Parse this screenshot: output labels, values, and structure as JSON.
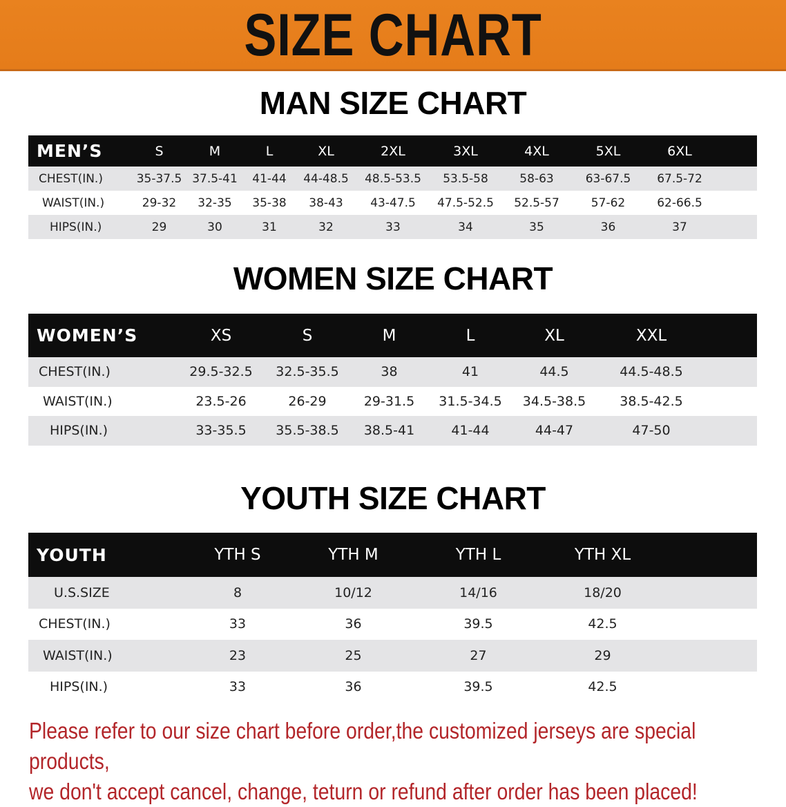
{
  "banner_title": "SIZE CHART",
  "colors": {
    "banner": "#E8801E",
    "header_row": "#0D0D0D",
    "stripe": "#E4E4E6",
    "note": "#B3262A"
  },
  "men": {
    "title": "MAN SIZE CHART",
    "header": [
      "MEN’S",
      "S",
      "M",
      "L",
      "XL",
      "2XL",
      "3XL",
      "4XL",
      "5XL",
      "6XL"
    ],
    "rows": [
      [
        "CHEST(IN.)",
        "35-37.5",
        "37.5-41",
        "41-44",
        "44-48.5",
        "48.5-53.5",
        "53.5-58",
        "58-63",
        "63-67.5",
        "67.5-72"
      ],
      [
        "WAIST(IN.)",
        "29-32",
        "32-35",
        "35-38",
        "38-43",
        "43-47.5",
        "47.5-52.5",
        "52.5-57",
        "57-62",
        "62-66.5"
      ],
      [
        "HIPS(IN.)",
        "29",
        "30",
        "31",
        "32",
        "33",
        "34",
        "35",
        "36",
        "37"
      ]
    ]
  },
  "women": {
    "title": "WOMEN SIZE CHART",
    "header": [
      "WOMEN’S",
      "XS",
      "S",
      "M",
      "L",
      "XL",
      "XXL"
    ],
    "rows": [
      [
        "CHEST(IN.)",
        "29.5-32.5",
        "32.5-35.5",
        "38",
        "41",
        "44.5",
        "44.5-48.5"
      ],
      [
        "WAIST(IN.)",
        "23.5-26",
        "26-29",
        "29-31.5",
        "31.5-34.5",
        "34.5-38.5",
        "38.5-42.5"
      ],
      [
        "HIPS(IN.)",
        "33-35.5",
        "35.5-38.5",
        "38.5-41",
        "41-44",
        "44-47",
        "47-50"
      ]
    ]
  },
  "youth": {
    "title": "YOUTH SIZE CHART",
    "header": [
      "YOUTH",
      "YTH S",
      "YTH M",
      "YTH L",
      "YTH XL"
    ],
    "rows": [
      [
        "U.S.SIZE",
        "8",
        "10/12",
        "14/16",
        "18/20"
      ],
      [
        "CHEST(IN.)",
        "33",
        "36",
        "39.5",
        "42.5"
      ],
      [
        "WAIST(IN.)",
        "23",
        "25",
        "27",
        "29"
      ],
      [
        "HIPS(IN.)",
        "33",
        "36",
        "39.5",
        "42.5"
      ]
    ]
  },
  "note": {
    "line1": "Please refer to our size chart before order,the customized jerseys are special products,",
    "line2": "we don't accept cancel, change, teturn or refund after order has been placed!"
  }
}
